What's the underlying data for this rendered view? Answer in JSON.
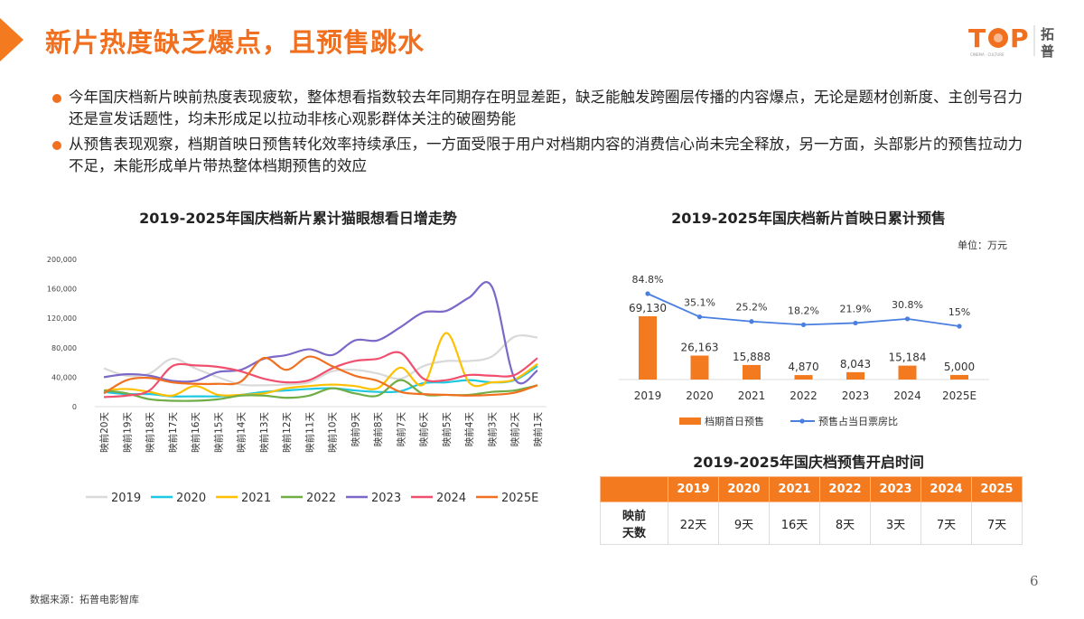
{
  "header": {
    "title": "新片热度缺乏爆点，且预售跳水",
    "logo_text": "TOP",
    "logo_cn": "拓普",
    "accent": "#f07020"
  },
  "bullets": [
    "今年国庆档新片映前热度表现疲软，整体想看指数较去年同期存在明显差距，缺乏能触发跨圈层传播的内容爆点，无论是题材创新度、主创号召力还是宣发话题性，均未形成足以拉动非核心观影群体关注的破圈势能",
    "从预售表现观察，档期首映日预售转化效率持续承压，一方面受限于用户对档期内容的消费信心尚未完全释放，另一方面，头部影片的预售拉动力不足，未能形成单片带热整体档期预售的效应"
  ],
  "chart_data": [
    {
      "type": "line",
      "title": "2019-2025年国庆档新片累计猫眼想看日增走势",
      "categories": [
        "映前20天",
        "映前19天",
        "映前18天",
        "映前17天",
        "映前16天",
        "映前15天",
        "映前14天",
        "映前13天",
        "映前12天",
        "映前11天",
        "映前10天",
        "映前9天",
        "映前8天",
        "映前7天",
        "映前6天",
        "映前5天",
        "映前4天",
        "映前3天",
        "映前2天",
        "映前1天"
      ],
      "ylim": [
        0,
        200000
      ],
      "yticks": [
        "0",
        "40,000",
        "80,000",
        "120,000",
        "160,000",
        "200,000"
      ],
      "legend_position": "bottom",
      "series": [
        {
          "name": "2019",
          "color": "#d9d9d9",
          "values": [
            52000,
            42000,
            45000,
            65000,
            52000,
            40000,
            30000,
            29000,
            30000,
            33000,
            48000,
            50000,
            45000,
            38000,
            55000,
            62000,
            62000,
            68000,
            95000,
            94000
          ]
        },
        {
          "name": "2020",
          "color": "#1ec8e0",
          "values": [
            20000,
            17000,
            17000,
            14000,
            14000,
            14000,
            16000,
            20000,
            22000,
            24000,
            25000,
            22000,
            20000,
            21000,
            32000,
            33000,
            36000,
            33000,
            36000,
            55000
          ]
        },
        {
          "name": "2021",
          "color": "#ffc000",
          "values": [
            22000,
            24000,
            20000,
            15000,
            28000,
            16000,
            16000,
            18000,
            25000,
            28000,
            30000,
            28000,
            25000,
            53000,
            30000,
            100000,
            33000,
            33000,
            37000,
            58000
          ]
        },
        {
          "name": "2022",
          "color": "#70ad47",
          "values": [
            22000,
            18000,
            10000,
            8000,
            8000,
            10000,
            15000,
            15000,
            12000,
            15000,
            25000,
            18000,
            15000,
            36000,
            17000,
            16000,
            16000,
            20000,
            22000,
            29000
          ]
        },
        {
          "name": "2023",
          "color": "#7b68c8",
          "values": [
            40000,
            44000,
            42000,
            35000,
            35000,
            47000,
            50000,
            65000,
            70000,
            78000,
            70000,
            90000,
            90000,
            108000,
            128000,
            130000,
            148000,
            163000,
            38000,
            49000
          ]
        },
        {
          "name": "2024",
          "color": "#f0506e",
          "values": [
            13000,
            15000,
            22000,
            55000,
            56000,
            54000,
            48000,
            38000,
            33000,
            36000,
            52000,
            62000,
            65000,
            73000,
            38000,
            36000,
            43000,
            42000,
            43000,
            66000
          ]
        },
        {
          "name": "2025E",
          "color": "#f07020",
          "values": [
            18000,
            36000,
            39000,
            33000,
            31000,
            31000,
            34000,
            66000,
            50000,
            68000,
            55000,
            42000,
            35000,
            20000,
            17000,
            16000,
            15000,
            16000,
            19000,
            29000
          ]
        }
      ]
    },
    {
      "type": "bar+line",
      "title": "2019-2025年国庆档新片首映日累计预售",
      "unit": "单位：万元",
      "categories": [
        "2019",
        "2020",
        "2021",
        "2022",
        "2023",
        "2024",
        "2025E"
      ],
      "series": [
        {
          "name": "档期首日预售",
          "type": "bar",
          "color": "#f47a20",
          "values": [
            69130,
            26163,
            15888,
            4870,
            8043,
            15184,
            5000
          ],
          "labels": [
            "69,130",
            "26,163",
            "15,888",
            "4,870",
            "8,043",
            "15,184",
            "5,000"
          ]
        },
        {
          "name": "预售占当日票房比",
          "type": "line",
          "color": "#4a7fe0",
          "values": [
            84.8,
            35.1,
            25.2,
            18.2,
            21.9,
            30.8,
            15
          ],
          "labels": [
            "84.8%",
            "35.1%",
            "25.2%",
            "18.2%",
            "21.9%",
            "30.8%",
            "15%"
          ]
        }
      ]
    }
  ],
  "presale_table": {
    "title": "2019-2025年国庆档预售开启时间",
    "columns": [
      "2019",
      "2020",
      "2021",
      "2022",
      "2023",
      "2024",
      "2025"
    ],
    "row_label": [
      "映前",
      "天数"
    ],
    "values": [
      "22天",
      "9天",
      "16天",
      "8天",
      "3天",
      "7天",
      "7天"
    ]
  },
  "footer": {
    "source": "数据来源：拓普电影智库",
    "page": "6"
  }
}
